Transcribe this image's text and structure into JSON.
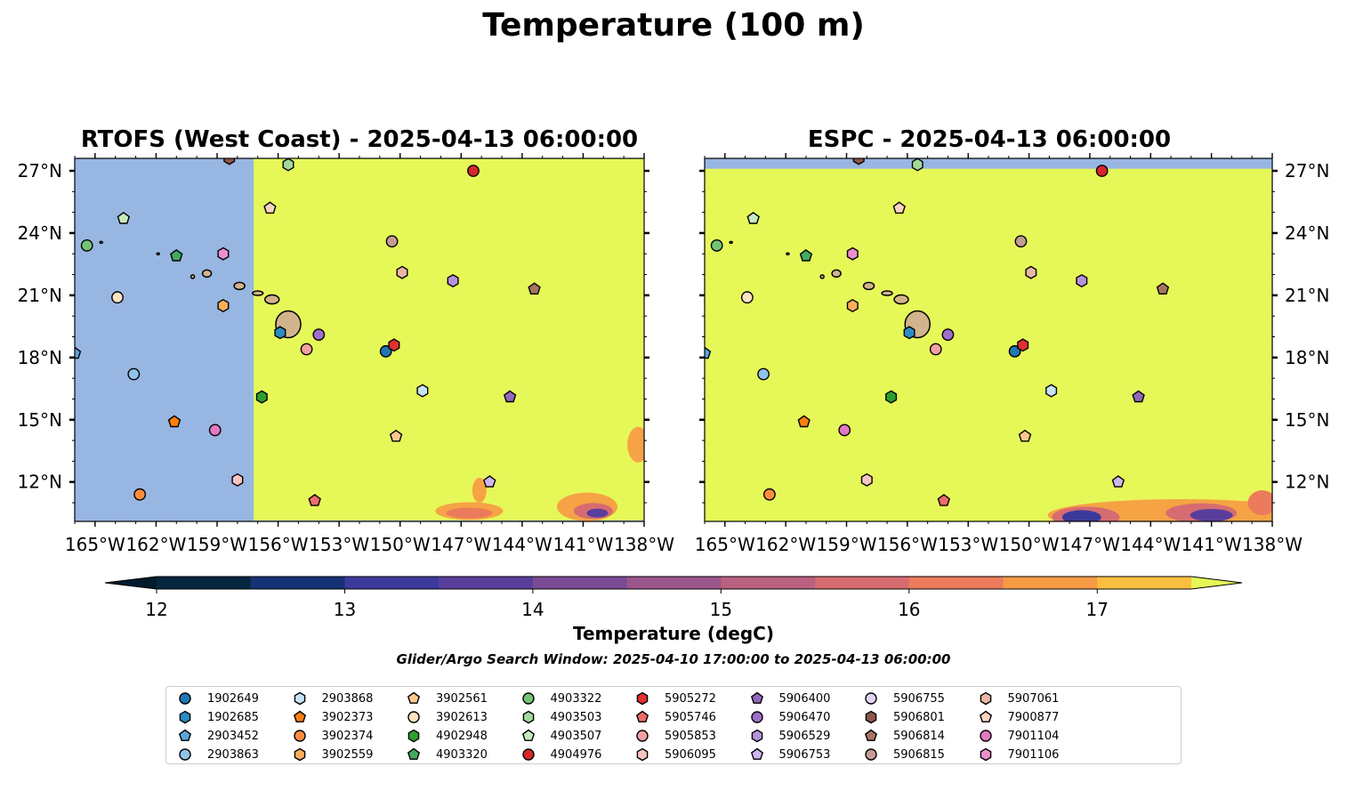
{
  "title": "Temperature (100 m)",
  "panels": [
    {
      "id": "rtofs",
      "title": "RTOFS (West Coast) - 2025-04-13 06:00:00"
    },
    {
      "id": "espc",
      "title": "ESPC - 2025-04-13 06:00:00"
    }
  ],
  "axes": {
    "lon_ticks": [
      "165°W",
      "162°W",
      "159°W",
      "156°W",
      "153°W",
      "150°W",
      "147°W",
      "144°W",
      "141°W",
      "138°W"
    ],
    "lon_values": [
      -165,
      -162,
      -159,
      -156,
      -153,
      -150,
      -147,
      -144,
      -141,
      -138
    ],
    "lat_ticks": [
      "27°N",
      "24°N",
      "21°N",
      "18°N",
      "15°N",
      "12°N"
    ],
    "lat_values": [
      27,
      24,
      21,
      18,
      15,
      12
    ],
    "lon_range": [
      -166,
      -138
    ],
    "lat_range": [
      10.1,
      27.6
    ]
  },
  "colorbar": {
    "label": "Temperature (degC)",
    "ticks": [
      "12",
      "13",
      "14",
      "15",
      "16",
      "17"
    ],
    "tick_values": [
      12,
      13,
      14,
      15,
      16,
      17
    ],
    "range": [
      12,
      17.5
    ],
    "colors": [
      "#05263f",
      "#143275",
      "#3b3a9c",
      "#5a3e9b",
      "#7a4a94",
      "#9a568b",
      "#ba6180",
      "#d66c70",
      "#ec7b5c",
      "#f79a45",
      "#fbbf3f"
    ],
    "over_color": "#e6f858",
    "under_color": "#021b2c",
    "land_color": "#d2b48c",
    "nodata_color": "#98b6e2"
  },
  "window_text": "Glider/Argo Search Window: 2025-04-10 17:00:00 to 2025-04-13 06:00:00",
  "chart_data": {
    "type": "map",
    "floats": [
      {
        "id": "1902649",
        "marker": "circle",
        "color": "#1f77b4",
        "lon": -150.7,
        "lat": 18.3
      },
      {
        "id": "1902685",
        "marker": "hexagon",
        "color": "#2b8cc4",
        "lon": -155.9,
        "lat": 19.2
      },
      {
        "id": "2903452",
        "marker": "pentagon",
        "color": "#5aa6dc",
        "lon": -166.0,
        "lat": 18.2
      },
      {
        "id": "2903863",
        "marker": "circle",
        "color": "#8fc3ea",
        "lon": -163.1,
        "lat": 17.2
      },
      {
        "id": "2903868",
        "marker": "hexagon",
        "color": "#c6e2f7",
        "lon": -148.9,
        "lat": 16.4
      },
      {
        "id": "3902373",
        "marker": "pentagon",
        "color": "#ff7f0e",
        "lon": -161.1,
        "lat": 14.9
      },
      {
        "id": "3902374",
        "marker": "circle",
        "color": "#fd8d3c",
        "lon": -162.8,
        "lat": 11.4
      },
      {
        "id": "3902559",
        "marker": "hexagon",
        "color": "#fdae5b",
        "lon": -158.7,
        "lat": 20.5
      },
      {
        "id": "3902561",
        "marker": "pentagon",
        "color": "#fdc890",
        "lon": -150.2,
        "lat": 14.2
      },
      {
        "id": "3902613",
        "marker": "circle",
        "color": "#fde3c4",
        "lon": -163.9,
        "lat": 20.9
      },
      {
        "id": "4902948",
        "marker": "hexagon",
        "color": "#2ca02c",
        "lon": -156.8,
        "lat": 16.1
      },
      {
        "id": "4903320",
        "marker": "pentagon",
        "color": "#41ab5d",
        "lon": -161.0,
        "lat": 22.9
      },
      {
        "id": "4903322",
        "marker": "circle",
        "color": "#74c476",
        "lon": -165.4,
        "lat": 23.4
      },
      {
        "id": "4903503",
        "marker": "hexagon",
        "color": "#a1d99b",
        "lon": -155.5,
        "lat": 27.3
      },
      {
        "id": "4903507",
        "marker": "pentagon",
        "color": "#c7e9c0",
        "lon": -163.6,
        "lat": 24.7
      },
      {
        "id": "4904976",
        "marker": "circle",
        "color": "#d62728",
        "lon": -146.4,
        "lat": 27.0
      },
      {
        "id": "5905272",
        "marker": "hexagon",
        "color": "#e03030",
        "lon": -150.3,
        "lat": 18.6
      },
      {
        "id": "5905746",
        "marker": "pentagon",
        "color": "#ef6c6c",
        "lon": -154.2,
        "lat": 11.1
      },
      {
        "id": "5905853",
        "marker": "circle",
        "color": "#f4a0a0",
        "lon": -154.6,
        "lat": 18.4
      },
      {
        "id": "5906095",
        "marker": "hexagon",
        "color": "#f8c4c0",
        "lon": -158.0,
        "lat": 12.1
      },
      {
        "id": "5906400",
        "marker": "pentagon",
        "color": "#9467bd",
        "lon": -144.6,
        "lat": 16.1
      },
      {
        "id": "5906470",
        "marker": "circle",
        "color": "#9e6fc8",
        "lon": -154.0,
        "lat": 19.1
      },
      {
        "id": "5906529",
        "marker": "hexagon",
        "color": "#b593dc",
        "lon": -147.4,
        "lat": 21.7
      },
      {
        "id": "5906753",
        "marker": "pentagon",
        "color": "#cfb6ee",
        "lon": -145.6,
        "lat": 12.0
      },
      {
        "id": "5906755",
        "marker": "circle",
        "color": "#e3d3f6",
        "lon": -166.5,
        "lat": 20.4
      },
      {
        "id": "5906801",
        "marker": "hexagon",
        "color": "#8c564b",
        "lon": -158.4,
        "lat": 27.6
      },
      {
        "id": "5906814",
        "marker": "pentagon",
        "color": "#a57560",
        "lon": -143.4,
        "lat": 21.3
      },
      {
        "id": "5906815",
        "marker": "circle",
        "color": "#c49c94",
        "lon": -150.4,
        "lat": 23.6
      },
      {
        "id": "5907061",
        "marker": "hexagon",
        "color": "#e8b7a5",
        "lon": -149.9,
        "lat": 22.1
      },
      {
        "id": "7900877",
        "marker": "pentagon",
        "color": "#fad3c0",
        "lon": -156.4,
        "lat": 25.2
      },
      {
        "id": "7901104",
        "marker": "circle",
        "color": "#e377c2",
        "lon": -159.1,
        "lat": 14.5
      },
      {
        "id": "7901106",
        "marker": "hexagon",
        "color": "#ec8fcf",
        "lon": -158.7,
        "lat": 23.0
      }
    ]
  }
}
